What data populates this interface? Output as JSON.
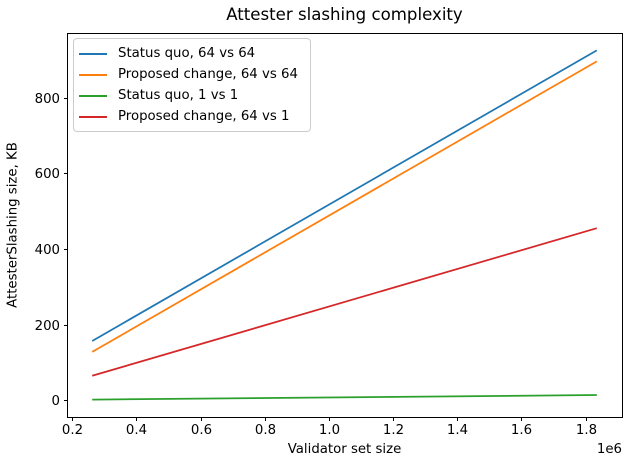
{
  "chart_data": {
    "type": "line",
    "title": "Attester slashing complexity",
    "xlabel": "Validator set size",
    "ylabel": "AttesterSlashing size, KB",
    "x_offset_label": "1e6",
    "x": [
      262144,
      1835008
    ],
    "series": [
      {
        "name": "Status quo, 64 vs 64",
        "color": "#1f77b4",
        "values": [
          157,
          925
        ]
      },
      {
        "name": "Proposed change, 64 vs 64",
        "color": "#ff7f0e",
        "values": [
          128,
          896
        ]
      },
      {
        "name": "Status quo, 1 vs 1",
        "color": "#2ca02c",
        "values": [
          2,
          14
        ]
      },
      {
        "name": "Proposed change, 64 vs 1",
        "color": "#d62728",
        "values": [
          65,
          455
        ]
      }
    ],
    "xlim": [
      183501,
      1913651
    ],
    "ylim": [
      -44,
      971
    ],
    "x_ticks": [
      200000,
      400000,
      600000,
      800000,
      1000000,
      1200000,
      1400000,
      1600000,
      1800000
    ],
    "x_tick_labels": [
      "0.2",
      "0.4",
      "0.6",
      "0.8",
      "1.0",
      "1.2",
      "1.4",
      "1.6",
      "1.8"
    ],
    "y_ticks": [
      0,
      200,
      400,
      600,
      800
    ],
    "y_tick_labels": [
      "0",
      "200",
      "400",
      "600",
      "800"
    ],
    "grid": false,
    "legend_position": "upper-left",
    "axes_color": "#000000",
    "background_color": "#ffffff",
    "legend_border_color": "#cccccc"
  }
}
